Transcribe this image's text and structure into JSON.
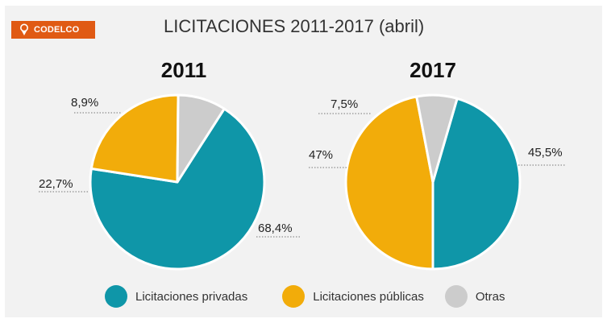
{
  "brand": {
    "name": "CODELCO",
    "icon": "codelco-logo-icon",
    "color": "#e05a14"
  },
  "chart_data": [
    {
      "type": "pie",
      "title": "LICITACIONES 2011-2017 (abril)",
      "subtitle": "2011",
      "categories": [
        "Licitaciones privadas",
        "Licitaciones públicas",
        "Otras"
      ],
      "values": [
        68.4,
        22.7,
        8.9
      ],
      "labels": [
        "68,4%",
        "22,7%",
        "8,9%"
      ],
      "colors": [
        "#0f96a8",
        "#f2ac0a",
        "#cccccc"
      ]
    },
    {
      "type": "pie",
      "title": "LICITACIONES 2011-2017 (abril)",
      "subtitle": "2017",
      "categories": [
        "Licitaciones privadas",
        "Licitaciones públicas",
        "Otras"
      ],
      "values": [
        45.5,
        47,
        7.5
      ],
      "labels": [
        "45,5%",
        "47%",
        "7,5%"
      ],
      "colors": [
        "#0f96a8",
        "#f2ac0a",
        "#cccccc"
      ]
    }
  ],
  "title": "LICITACIONES 2011-2017 (abril)",
  "legend": [
    {
      "label": "Licitaciones privadas",
      "color": "#0f96a8"
    },
    {
      "label": "Licitaciones públicas",
      "color": "#f2ac0a"
    },
    {
      "label": "Otras",
      "color": "#cccccc"
    }
  ]
}
